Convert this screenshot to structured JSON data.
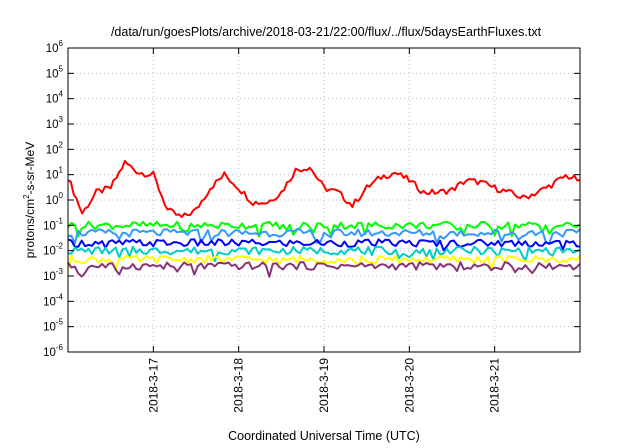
{
  "chart_data": {
    "type": "line",
    "title": "/data/run/goesPlots/archive/2018-03-21/22:00/flux/../flux/5daysEarthFluxes.txt",
    "xlabel": "Coordinated Universal Time (UTC)",
    "ylabel_parts": {
      "a": "protons/cm",
      "sup": "2",
      "b": "-s-sr-MeV"
    },
    "yscale": "log",
    "ylim": [
      1e-06,
      1000000.0
    ],
    "y_ticks": [
      {
        "base": "10",
        "exp": "-6",
        "value": 1e-06
      },
      {
        "base": "10",
        "exp": "-5",
        "value": 1e-05
      },
      {
        "base": "10",
        "exp": "-4",
        "value": 0.0001
      },
      {
        "base": "10",
        "exp": "-3",
        "value": 0.001
      },
      {
        "base": "10",
        "exp": "-2",
        "value": 0.01
      },
      {
        "base": "10",
        "exp": "-1",
        "value": 0.1
      },
      {
        "base": "10",
        "exp": "0",
        "value": 1
      },
      {
        "base": "10",
        "exp": "1",
        "value": 10
      },
      {
        "base": "10",
        "exp": "2",
        "value": 100
      },
      {
        "base": "10",
        "exp": "3",
        "value": 1000
      },
      {
        "base": "10",
        "exp": "4",
        "value": 10000
      },
      {
        "base": "10",
        "exp": "5",
        "value": 100000
      },
      {
        "base": "10",
        "exp": "6",
        "value": 1000000
      }
    ],
    "xlim": [
      "2018-03-16T00:00",
      "2018-03-22T00:00"
    ],
    "x_ticks": [
      {
        "label": "2018-3-17",
        "value": "2018-03-17T00:00"
      },
      {
        "label": "2018-3-18",
        "value": "2018-03-18T00:00"
      },
      {
        "label": "2018-3-19",
        "value": "2018-03-19T00:00"
      },
      {
        "label": "2018-3-20",
        "value": "2018-03-20T00:00"
      },
      {
        "label": "2018-3-21",
        "value": "2018-03-21T00:00"
      }
    ],
    "grid": true,
    "legend": "none",
    "series": [
      {
        "color": "#ff0000",
        "x": [
          "2018-03-16T00:00",
          "2018-03-16T04:00",
          "2018-03-16T08:00",
          "2018-03-16T12:00",
          "2018-03-16T16:00",
          "2018-03-16T20:00",
          "2018-03-17T00:00",
          "2018-03-17T04:00",
          "2018-03-17T08:00",
          "2018-03-17T12:00",
          "2018-03-17T16:00",
          "2018-03-17T20:00",
          "2018-03-18T00:00",
          "2018-03-18T04:00",
          "2018-03-18T08:00",
          "2018-03-18T12:00",
          "2018-03-18T16:00",
          "2018-03-18T20:00",
          "2018-03-19T00:00",
          "2018-03-19T04:00",
          "2018-03-19T08:00",
          "2018-03-19T12:00",
          "2018-03-19T16:00",
          "2018-03-19T20:00",
          "2018-03-20T00:00",
          "2018-03-20T04:00",
          "2018-03-20T08:00",
          "2018-03-20T12:00",
          "2018-03-20T16:00",
          "2018-03-20T20:00",
          "2018-03-21T00:00",
          "2018-03-21T04:00",
          "2018-03-21T08:00",
          "2018-03-21T12:00",
          "2018-03-21T16:00",
          "2018-03-21T20:00",
          "2018-03-22T00:00"
        ],
        "values": [
          8,
          0.3,
          2,
          3,
          30,
          12,
          10,
          0.4,
          0.2,
          0.4,
          3,
          10,
          3,
          0.8,
          0.8,
          2,
          15,
          20,
          3,
          2,
          0.6,
          3,
          8,
          12,
          6,
          2,
          2,
          2.5,
          6,
          5,
          3,
          2,
          1.2,
          2,
          4,
          9,
          6
        ]
      },
      {
        "color": "#00ff00",
        "x": [
          "2018-03-16T00:00",
          "2018-03-22T00:00"
        ],
        "values": [
          0.1,
          0.1
        ]
      },
      {
        "color": "#3399ff",
        "x": [
          "2018-03-16T00:00",
          "2018-03-22T00:00"
        ],
        "values": [
          0.05,
          0.05
        ]
      },
      {
        "color": "#0000ff",
        "x": [
          "2018-03-16T00:00",
          "2018-03-22T00:00"
        ],
        "values": [
          0.02,
          0.02
        ]
      },
      {
        "color": "#00cccc",
        "x": [
          "2018-03-16T00:00",
          "2018-03-22T00:00"
        ],
        "values": [
          0.01,
          0.01
        ]
      },
      {
        "color": "#ffff00",
        "x": [
          "2018-03-16T00:00",
          "2018-03-22T00:00"
        ],
        "values": [
          0.0045,
          0.0045
        ]
      },
      {
        "color": "#883377",
        "x": [
          "2018-03-16T00:00",
          "2018-03-22T00:00"
        ],
        "values": [
          0.0025,
          0.0025
        ]
      }
    ]
  }
}
